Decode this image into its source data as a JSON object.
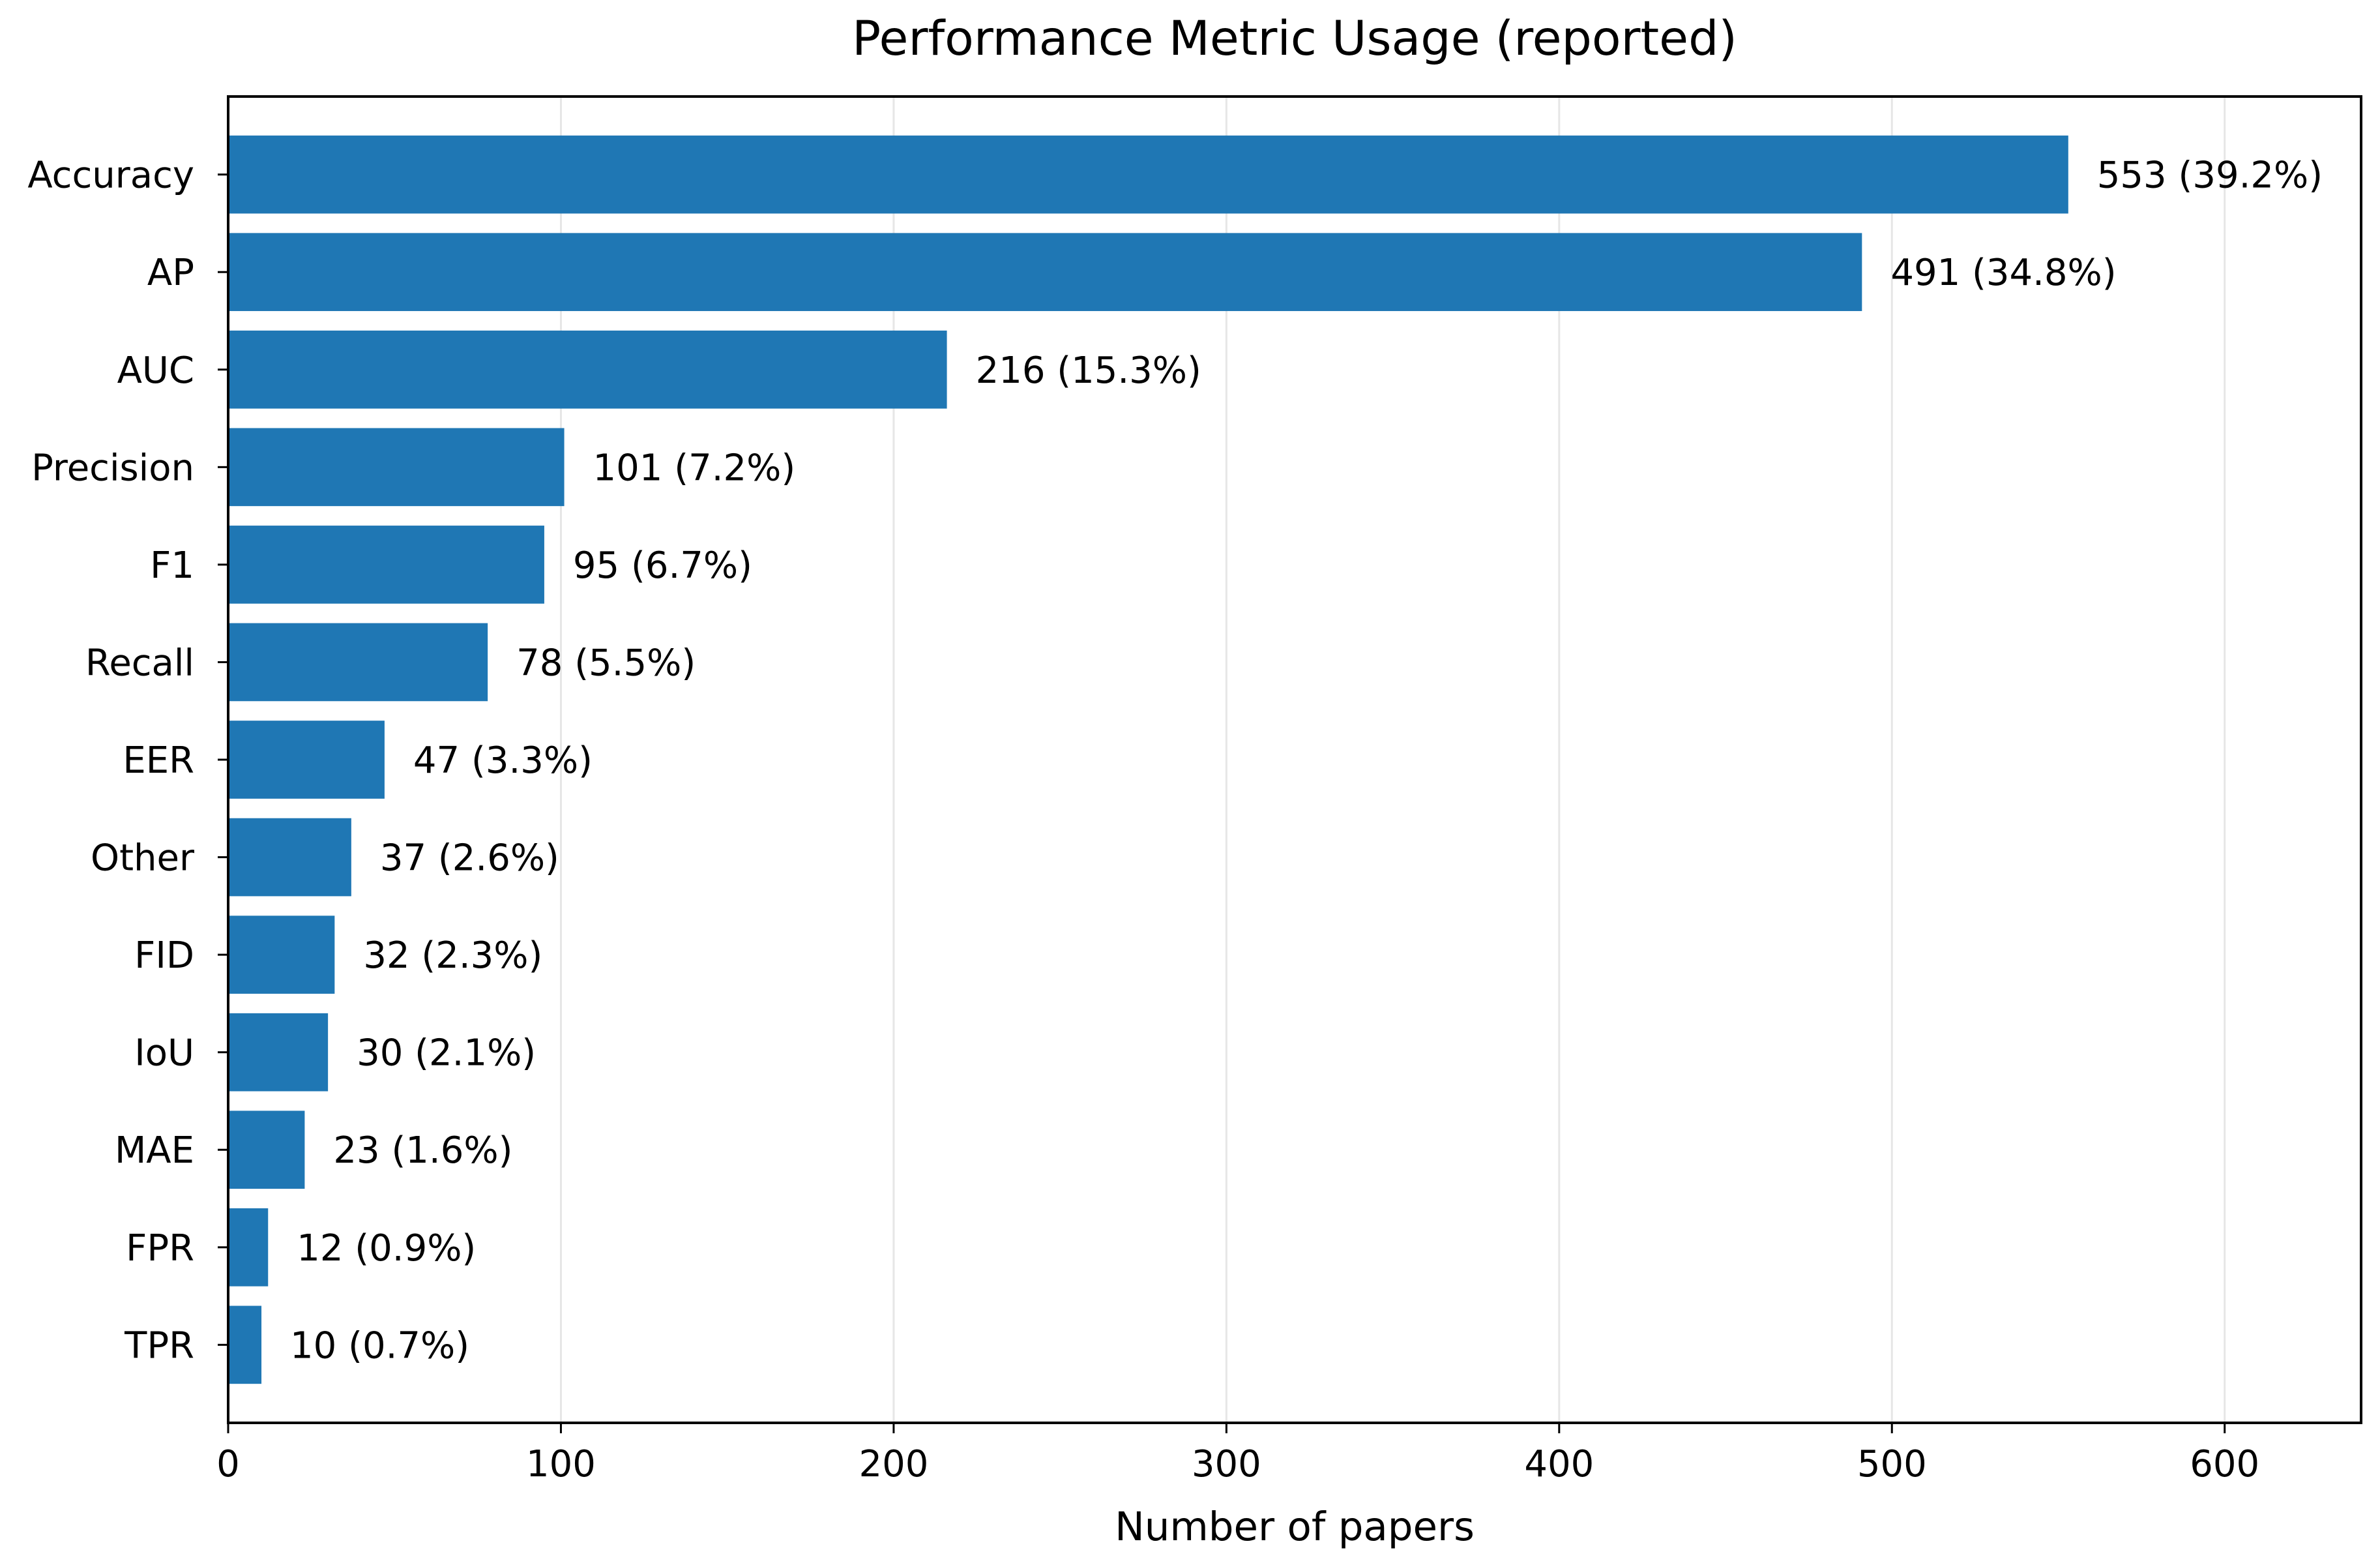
{
  "chart_data": {
    "type": "bar",
    "orientation": "horizontal",
    "title": "Performance Metric Usage (reported)",
    "xlabel": "Number of papers",
    "ylabel": "",
    "xlim": [
      0,
      641
    ],
    "xticks": [
      0,
      100,
      200,
      300,
      400,
      500,
      600
    ],
    "grid": "x",
    "bar_color": "#1f77b4",
    "categories": [
      "Accuracy",
      "AP",
      "AUC",
      "Precision",
      "F1",
      "Recall",
      "EER",
      "Other",
      "FID",
      "IoU",
      "MAE",
      "FPR",
      "TPR"
    ],
    "values": [
      553,
      491,
      216,
      101,
      95,
      78,
      47,
      37,
      32,
      30,
      23,
      12,
      10
    ],
    "data_labels": [
      "553 (39.2%)",
      "491 (34.8%)",
      "216 (15.3%)",
      "101 (7.2%)",
      "95 (6.7%)",
      "78 (5.5%)",
      "47 (3.3%)",
      "37 (2.6%)",
      "32 (2.3%)",
      "30 (2.1%)",
      "23 (1.6%)",
      "12 (0.9%)",
      "10 (0.7%)"
    ]
  }
}
